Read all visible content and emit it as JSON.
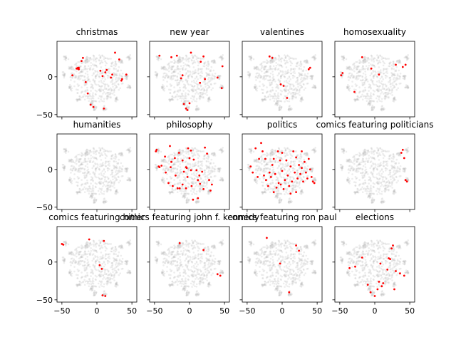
{
  "figure": {
    "background": "#ffffff",
    "highlight_color": "#ff0000",
    "background_point_color": "#bdbdbd",
    "layout": "3 rows x 4 columns of scatter subplots with shared x and y axes"
  },
  "chart_data": {
    "type": "scatter",
    "xlim": [
      -57,
      57
    ],
    "ylim": [
      -53,
      47
    ],
    "xticks": [
      -50,
      0,
      50
    ],
    "yticks": [
      -50,
      0
    ],
    "tick_labels_shown": "x labels on bottom row only, y labels on left column only",
    "grid": false,
    "background_cloud": {
      "description": "same faint grey t-SNE embedding of all comics repeated in every panel",
      "center": [
        0,
        0
      ],
      "clusters": [
        {
          "x": -45,
          "y": 25
        },
        {
          "x": -47,
          "y": 3
        },
        {
          "x": -37,
          "y": 12
        },
        {
          "x": -38,
          "y": -15
        },
        {
          "x": -26,
          "y": -30
        },
        {
          "x": -8,
          "y": -35
        },
        {
          "x": 11,
          "y": -42
        },
        {
          "x": -3,
          "y": -42
        },
        {
          "x": 28,
          "y": -30
        },
        {
          "x": 45,
          "y": 25
        },
        {
          "x": 46,
          "y": -14
        },
        {
          "x": 34,
          "y": 20
        },
        {
          "x": 42,
          "y": 0
        },
        {
          "x": -15,
          "y": 22
        }
      ]
    },
    "panels": [
      {
        "title": "christmas",
        "points": [
          [
            -28,
            11
          ],
          [
            -27,
            12
          ],
          [
            -26,
            10
          ],
          [
            -29,
            11
          ],
          [
            -26,
            12
          ],
          [
            -35,
            2
          ],
          [
            -22,
            21
          ],
          [
            -20,
            25
          ],
          [
            -13,
            -22
          ],
          [
            -9,
            -37
          ],
          [
            -5,
            -40
          ],
          [
            10,
            -42
          ],
          [
            5,
            8
          ],
          [
            8,
            1
          ],
          [
            12,
            6
          ],
          [
            20,
            -1
          ],
          [
            22,
            3
          ],
          [
            26,
            32
          ],
          [
            32,
            23
          ],
          [
            35,
            -5
          ],
          [
            36,
            -3
          ],
          [
            42,
            3
          ],
          [
            -16,
            -7
          ],
          [
            14,
            9
          ]
        ]
      },
      {
        "title": "new year",
        "points": [
          [
            -43,
            28
          ],
          [
            -26,
            26
          ],
          [
            -18,
            28
          ],
          [
            -12,
            -2
          ],
          [
            -10,
            2
          ],
          [
            -8,
            -36
          ],
          [
            -5,
            -42
          ],
          [
            0,
            -35
          ],
          [
            -3,
            -44
          ],
          [
            2,
            32
          ],
          [
            16,
            20
          ],
          [
            20,
            27
          ],
          [
            40,
            -1
          ],
          [
            46,
            -15
          ],
          [
            47,
            14
          ],
          [
            15,
            -8
          ],
          [
            22,
            -3
          ]
        ]
      },
      {
        "title": "valentines",
        "points": [
          [
            -18,
            27
          ],
          [
            -14,
            25
          ],
          [
            -2,
            -10
          ],
          [
            2,
            -12
          ],
          [
            7,
            -28
          ],
          [
            38,
            10
          ],
          [
            40,
            12
          ]
        ]
      },
      {
        "title": "homosexuality",
        "points": [
          [
            -48,
            2
          ],
          [
            -46,
            5
          ],
          [
            -29,
            -20
          ],
          [
            -18,
            26
          ],
          [
            -5,
            11
          ],
          [
            6,
            3
          ],
          [
            30,
            16
          ],
          [
            40,
            13
          ],
          [
            44,
            16
          ]
        ]
      },
      {
        "title": "humanities",
        "points": []
      },
      {
        "title": "philosophy",
        "points": [
          [
            -48,
            24
          ],
          [
            -47,
            26
          ],
          [
            -44,
            4
          ],
          [
            -43,
            3
          ],
          [
            -40,
            5
          ],
          [
            -35,
            17
          ],
          [
            -34,
            -4
          ],
          [
            -30,
            -18
          ],
          [
            -27,
            3
          ],
          [
            -26,
            10
          ],
          [
            -24,
            -22
          ],
          [
            -21,
            15
          ],
          [
            -20,
            -8
          ],
          [
            -17,
            -25
          ],
          [
            -14,
            -25
          ],
          [
            -10,
            -20
          ],
          [
            -8,
            -3
          ],
          [
            -5,
            3
          ],
          [
            -4,
            2
          ],
          [
            -3,
            -10
          ],
          [
            -2,
            28
          ],
          [
            0,
            15
          ],
          [
            2,
            25
          ],
          [
            3,
            -22
          ],
          [
            6,
            13
          ],
          [
            10,
            -1
          ],
          [
            12,
            -14
          ],
          [
            12,
            -38
          ],
          [
            14,
            -8
          ],
          [
            15,
            -19
          ],
          [
            18,
            -3
          ],
          [
            20,
            -26
          ],
          [
            22,
            29
          ],
          [
            25,
            21
          ],
          [
            28,
            -14
          ],
          [
            30,
            -28
          ],
          [
            32,
            -20
          ],
          [
            -15,
            22
          ],
          [
            -10,
            12
          ],
          [
            5,
            -40
          ],
          [
            -28,
            31
          ],
          [
            2,
            -1
          ],
          [
            -5,
            -25
          ]
        ]
      },
      {
        "title": "politics",
        "points": [
          [
            -45,
            4
          ],
          [
            -42,
            -4
          ],
          [
            -38,
            28
          ],
          [
            -35,
            -10
          ],
          [
            -33,
            14
          ],
          [
            -30,
            35
          ],
          [
            -28,
            24
          ],
          [
            -26,
            -8
          ],
          [
            -23,
            -14
          ],
          [
            -20,
            -22
          ],
          [
            -18,
            -4
          ],
          [
            -16,
            -10
          ],
          [
            -14,
            6
          ],
          [
            -12,
            14
          ],
          [
            -10,
            -6
          ],
          [
            -8,
            -24
          ],
          [
            -6,
            24
          ],
          [
            -5,
            -18
          ],
          [
            -3,
            12
          ],
          [
            -2,
            -20
          ],
          [
            0,
            -2
          ],
          [
            2,
            -26
          ],
          [
            4,
            -14
          ],
          [
            6,
            12
          ],
          [
            8,
            -8
          ],
          [
            10,
            -22
          ],
          [
            12,
            4
          ],
          [
            14,
            -16
          ],
          [
            16,
            24
          ],
          [
            18,
            -4
          ],
          [
            20,
            16
          ],
          [
            22,
            -12
          ],
          [
            24,
            6
          ],
          [
            26,
            -6
          ],
          [
            28,
            2
          ],
          [
            30,
            -16
          ],
          [
            32,
            10
          ],
          [
            34,
            -4
          ],
          [
            36,
            -12
          ],
          [
            38,
            14
          ],
          [
            40,
            0
          ],
          [
            42,
            -10
          ],
          [
            44,
            -16
          ],
          [
            46,
            -18
          ],
          [
            -24,
            14
          ],
          [
            -12,
            -30
          ],
          [
            0,
            22
          ],
          [
            12,
            -32
          ],
          [
            20,
            -30
          ],
          [
            28,
            24
          ]
        ]
      },
      {
        "title": "comics featuring politicians",
        "points": [
          [
            38,
            22
          ],
          [
            40,
            26
          ],
          [
            42,
            15
          ],
          [
            44,
            -14
          ],
          [
            46,
            -16
          ]
        ]
      },
      {
        "title": "comics featuring hitler",
        "points": [
          [
            -50,
            24
          ],
          [
            -48,
            23
          ],
          [
            -11,
            30
          ],
          [
            4,
            -4
          ],
          [
            7,
            -9
          ],
          [
            10,
            28
          ],
          [
            8,
            -44
          ],
          [
            12,
            -45
          ]
        ]
      },
      {
        "title": "comics featuring john f. kennedy",
        "points": [
          [
            -14,
            25
          ],
          [
            20,
            16
          ],
          [
            40,
            -16
          ],
          [
            44,
            -18
          ]
        ]
      },
      {
        "title": "comics featuring ron paul",
        "points": [
          [
            -22,
            32
          ],
          [
            -3,
            -2
          ],
          [
            10,
            -40
          ],
          [
            20,
            22
          ],
          [
            24,
            15
          ]
        ]
      },
      {
        "title": "elections",
        "points": [
          [
            -36,
            -8
          ],
          [
            -28,
            -6
          ],
          [
            -18,
            6
          ],
          [
            -10,
            -30
          ],
          [
            -6,
            -40
          ],
          [
            0,
            -45
          ],
          [
            4,
            -36
          ],
          [
            8,
            -2
          ],
          [
            18,
            -10
          ],
          [
            20,
            5
          ],
          [
            22,
            4
          ],
          [
            24,
            18
          ],
          [
            26,
            22
          ],
          [
            30,
            -12
          ],
          [
            36,
            -15
          ],
          [
            42,
            -18
          ],
          [
            10,
            -32
          ],
          [
            12,
            -28
          ],
          [
            28,
            -36
          ],
          [
            6,
            -26
          ]
        ]
      }
    ]
  }
}
